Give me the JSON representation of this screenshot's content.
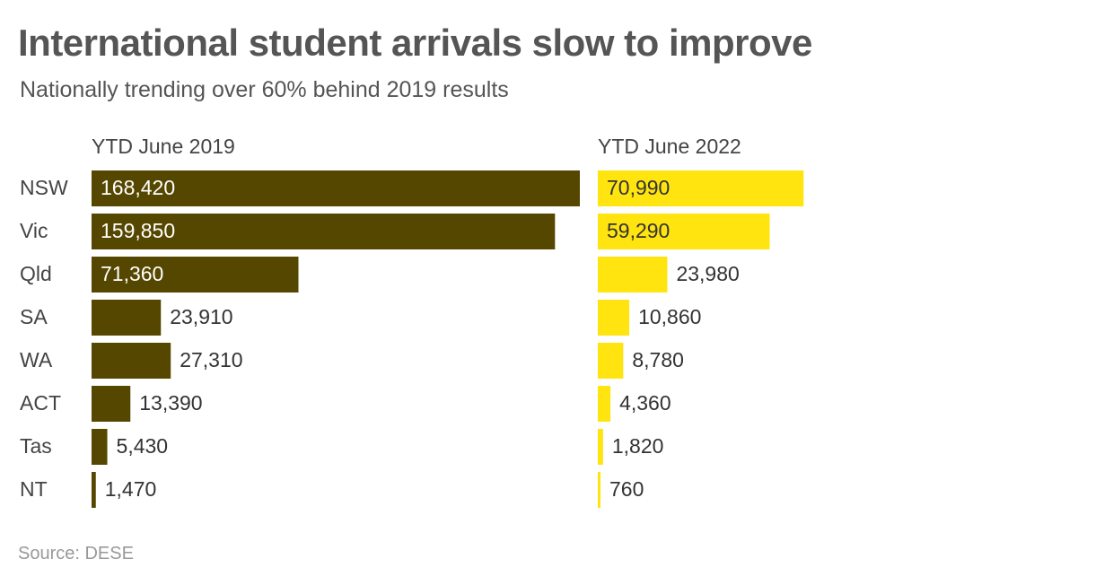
{
  "title": "International student arrivals slow to improve",
  "subtitle": "Nationally trending over 60% behind 2019 results",
  "source": "Source: DESE",
  "colors": {
    "series_2019": "#554600",
    "series_2022": "#ffe40f",
    "label_text": "#333333",
    "label_on_dark": "#ffffff",
    "label_on_light": "#333333"
  },
  "chart_data": {
    "type": "bar",
    "orientation": "horizontal",
    "categories": [
      "NSW",
      "Vic",
      "Qld",
      "SA",
      "WA",
      "ACT",
      "Tas",
      "NT"
    ],
    "series": [
      {
        "name": "YTD June 2019",
        "values": [
          168420,
          159850,
          71360,
          23910,
          27310,
          13390,
          5430,
          1470
        ],
        "labels": [
          "168,420",
          "159,850",
          "71,360",
          "23,910",
          "27,310",
          "13,390",
          "5,430",
          "1,470"
        ]
      },
      {
        "name": "YTD June 2022",
        "values": [
          70990,
          59290,
          23980,
          10860,
          8780,
          4360,
          1820,
          760
        ],
        "labels": [
          "70,990",
          "59,290",
          "23,980",
          "10,860",
          "8,780",
          "4,360",
          "1,820",
          "760"
        ]
      }
    ],
    "xlim": [
      0,
      168420
    ],
    "grid": false,
    "legend": "none"
  }
}
